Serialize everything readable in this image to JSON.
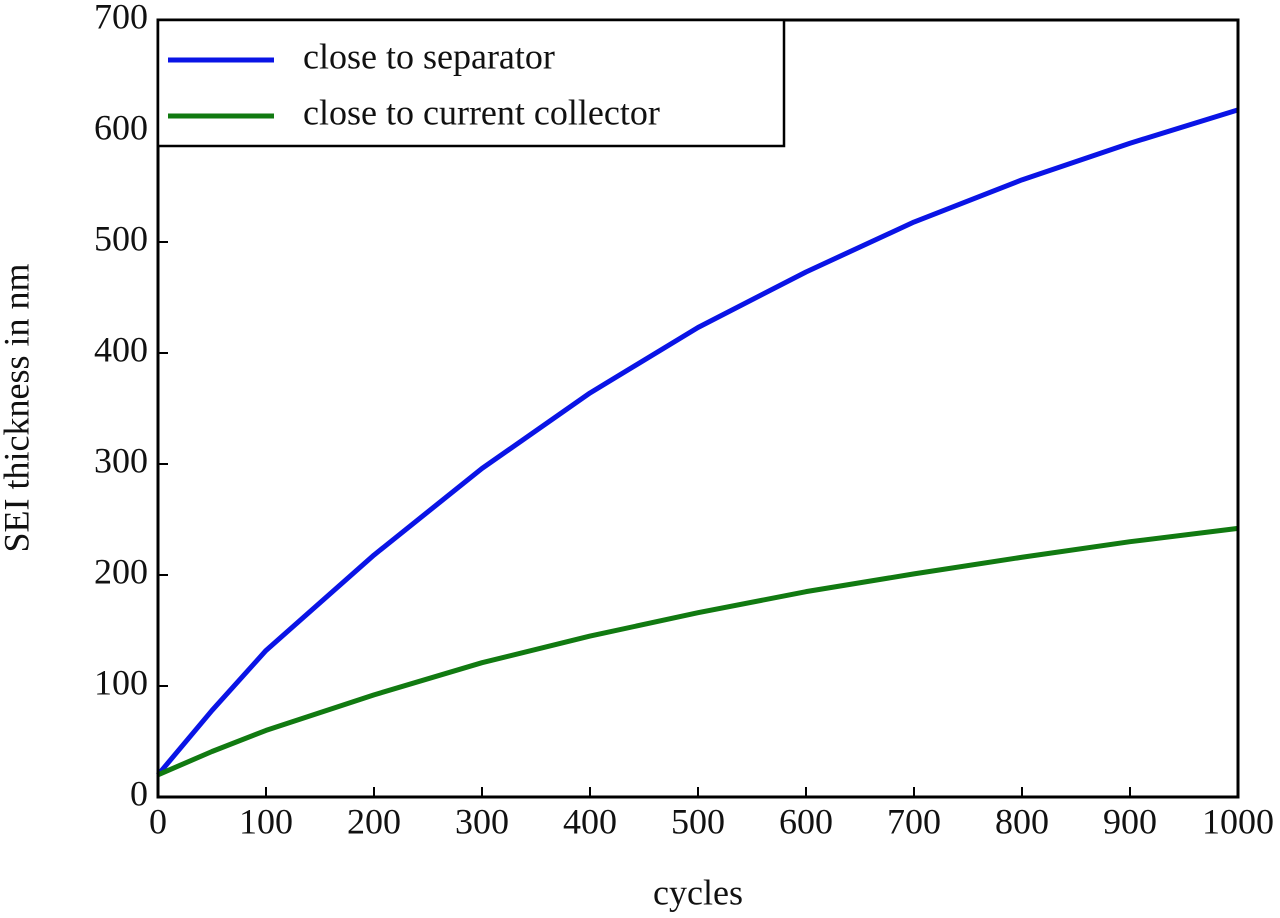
{
  "chart_data": {
    "type": "line",
    "x_label": "cycles",
    "y_label": "SEI thickness in nm",
    "x": [
      0,
      50,
      100,
      200,
      300,
      400,
      500,
      600,
      700,
      800,
      900,
      1000
    ],
    "series": [
      {
        "name": "close to separator",
        "color": "#0a14e6",
        "values": [
          20,
          78,
          132,
          218,
          296,
          364,
          423,
          473,
          518,
          556,
          589,
          619
        ]
      },
      {
        "name": "close to current collector",
        "color": "#117a11",
        "values": [
          20,
          41,
          60,
          92,
          121,
          145,
          166,
          185,
          201,
          216,
          230,
          242
        ]
      }
    ],
    "xlim": [
      0,
      1000
    ],
    "xticks": [
      0,
      100,
      200,
      300,
      400,
      500,
      600,
      700,
      800,
      900,
      1000
    ],
    "ylim": [
      0,
      700
    ],
    "yticks": [
      0,
      100,
      200,
      300,
      400,
      500,
      600,
      700
    ],
    "legend": "upper left"
  }
}
